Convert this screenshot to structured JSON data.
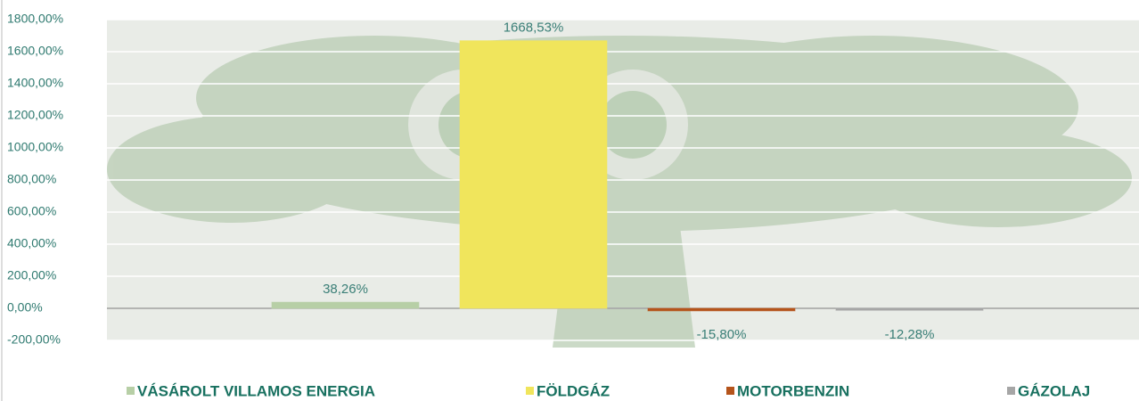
{
  "chart_data": {
    "type": "bar",
    "categories": [
      null
    ],
    "series": [
      {
        "name": "VÁSÁROLT VILLAMOS ENERGIA",
        "color": "#b7cfa6",
        "values": [
          38.26
        ],
        "value_labels": [
          "38,26%"
        ]
      },
      {
        "name": "FÖLDGÁZ",
        "color": "#f0e55c",
        "values": [
          1668.53
        ],
        "value_labels": [
          "1668,53%"
        ]
      },
      {
        "name": "MOTORBENZIN",
        "color": "#b5541b",
        "values": [
          -15.8
        ],
        "value_labels": [
          "-15,80%"
        ]
      },
      {
        "name": "GÁZOLAJ",
        "color": "#a6a6a6",
        "values": [
          -12.28
        ],
        "value_labels": [
          "-12,28%"
        ]
      }
    ],
    "ylim": [
      -200,
      1800
    ],
    "yticks": [
      {
        "value": -200,
        "label": "-200,00%"
      },
      {
        "value": 0,
        "label": "0,00%"
      },
      {
        "value": 200,
        "label": "200,00%"
      },
      {
        "value": 400,
        "label": "400,00%"
      },
      {
        "value": 600,
        "label": "600,00%"
      },
      {
        "value": 800,
        "label": "800,00%"
      },
      {
        "value": 1000,
        "label": "1000,00%"
      },
      {
        "value": 1200,
        "label": "1200,00%"
      },
      {
        "value": 1400,
        "label": "1400,00%"
      },
      {
        "value": 1600,
        "label": "1600,00%"
      },
      {
        "value": 1800,
        "label": "1800,00%"
      }
    ],
    "grid": true,
    "legend": "bottom"
  }
}
